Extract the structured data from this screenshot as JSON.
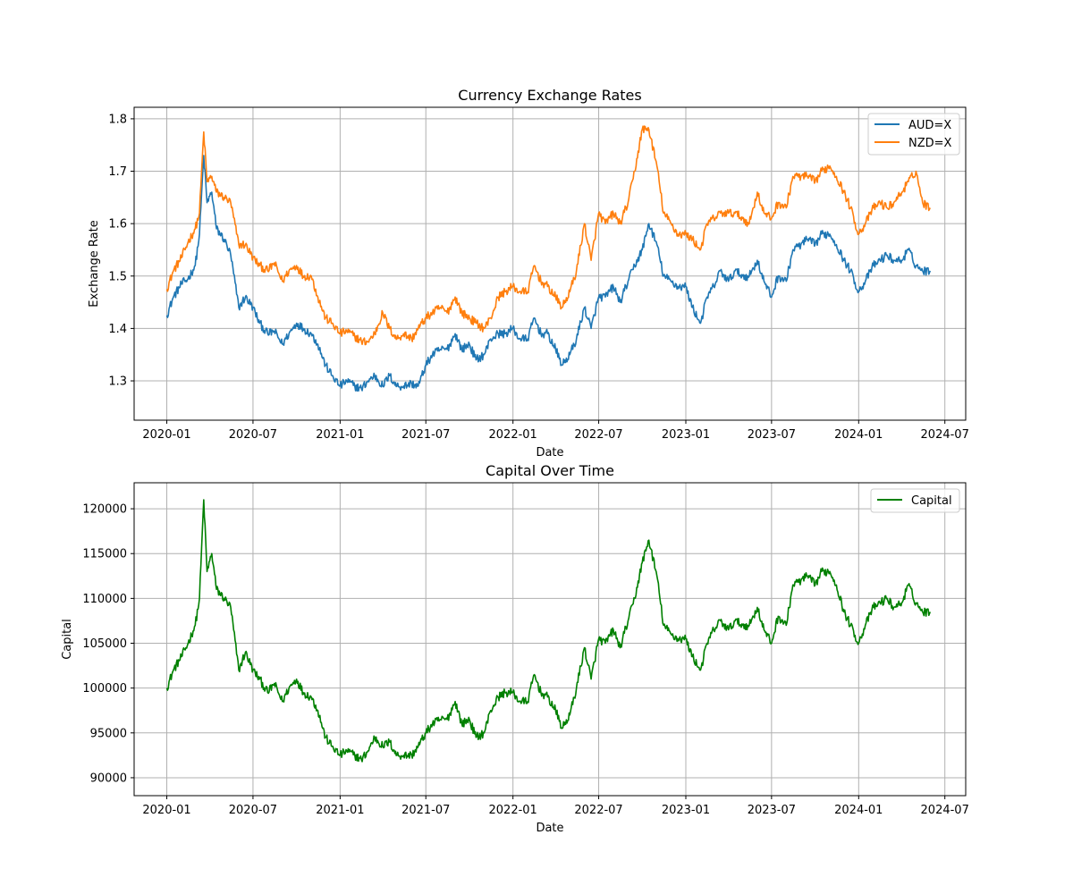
{
  "figure": {
    "background": "#ffffff",
    "grid_color": "#b0b0b0"
  },
  "chart_data": [
    {
      "type": "line",
      "title": "Currency Exchange Rates",
      "xlabel": "Date",
      "ylabel": "Exchange Rate",
      "xlim": [
        "2019-10-24",
        "2024-08-14"
      ],
      "ylim": [
        1.225,
        1.822
      ],
      "x_ticks": [
        "2020-01",
        "2020-07",
        "2021-01",
        "2021-07",
        "2022-01",
        "2022-07",
        "2023-01",
        "2023-07",
        "2024-01",
        "2024-07"
      ],
      "y_ticks": [
        1.3,
        1.4,
        1.5,
        1.6,
        1.7,
        1.8
      ],
      "y_tick_labels": [
        "1.3",
        "1.4",
        "1.5",
        "1.6",
        "1.7",
        "1.8"
      ],
      "grid": true,
      "legend": "top-right",
      "series": [
        {
          "name": "AUD=X",
          "color": "#1f77b4",
          "x": [
            "2020-01-01",
            "2020-01-15",
            "2020-02-01",
            "2020-02-15",
            "2020-03-01",
            "2020-03-10",
            "2020-03-19",
            "2020-03-26",
            "2020-04-05",
            "2020-04-15",
            "2020-05-01",
            "2020-05-15",
            "2020-06-01",
            "2020-06-15",
            "2020-07-01",
            "2020-07-15",
            "2020-08-01",
            "2020-08-15",
            "2020-09-01",
            "2020-09-15",
            "2020-10-01",
            "2020-10-15",
            "2020-11-01",
            "2020-11-15",
            "2020-12-01",
            "2020-12-15",
            "2021-01-01",
            "2021-01-15",
            "2021-02-01",
            "2021-02-15",
            "2021-03-01",
            "2021-03-15",
            "2021-04-01",
            "2021-04-15",
            "2021-05-01",
            "2021-05-15",
            "2021-06-01",
            "2021-06-15",
            "2021-07-01",
            "2021-07-15",
            "2021-08-01",
            "2021-08-15",
            "2021-09-01",
            "2021-09-15",
            "2021-10-01",
            "2021-10-15",
            "2021-11-01",
            "2021-11-15",
            "2021-12-01",
            "2021-12-15",
            "2022-01-01",
            "2022-01-15",
            "2022-02-01",
            "2022-02-15",
            "2022-03-01",
            "2022-03-15",
            "2022-04-01",
            "2022-04-15",
            "2022-05-01",
            "2022-05-15",
            "2022-06-01",
            "2022-06-15",
            "2022-07-01",
            "2022-07-15",
            "2022-08-01",
            "2022-08-15",
            "2022-09-01",
            "2022-09-15",
            "2022-10-01",
            "2022-10-15",
            "2022-11-01",
            "2022-11-15",
            "2022-12-01",
            "2022-12-15",
            "2023-01-01",
            "2023-01-15",
            "2023-02-01",
            "2023-02-15",
            "2023-03-01",
            "2023-03-15",
            "2023-04-01",
            "2023-04-15",
            "2023-05-01",
            "2023-05-15",
            "2023-06-01",
            "2023-06-15",
            "2023-07-01",
            "2023-07-15",
            "2023-08-01",
            "2023-08-15",
            "2023-09-01",
            "2023-09-15",
            "2023-10-01",
            "2023-10-15",
            "2023-11-01",
            "2023-11-15",
            "2023-12-01",
            "2023-12-15",
            "2024-01-01",
            "2024-01-15",
            "2024-02-01",
            "2024-02-15",
            "2024-03-01",
            "2024-03-15",
            "2024-04-01",
            "2024-04-15",
            "2024-05-01",
            "2024-05-15",
            "2024-05-31"
          ],
          "values": [
            1.425,
            1.46,
            1.485,
            1.495,
            1.52,
            1.58,
            1.73,
            1.64,
            1.66,
            1.59,
            1.57,
            1.54,
            1.44,
            1.46,
            1.44,
            1.41,
            1.39,
            1.395,
            1.37,
            1.39,
            1.41,
            1.4,
            1.39,
            1.37,
            1.33,
            1.31,
            1.29,
            1.3,
            1.29,
            1.285,
            1.3,
            1.31,
            1.29,
            1.31,
            1.29,
            1.29,
            1.295,
            1.29,
            1.33,
            1.35,
            1.36,
            1.36,
            1.39,
            1.36,
            1.37,
            1.34,
            1.35,
            1.38,
            1.39,
            1.39,
            1.4,
            1.38,
            1.38,
            1.42,
            1.39,
            1.39,
            1.36,
            1.33,
            1.35,
            1.38,
            1.44,
            1.4,
            1.46,
            1.46,
            1.48,
            1.45,
            1.49,
            1.52,
            1.55,
            1.6,
            1.56,
            1.5,
            1.49,
            1.48,
            1.48,
            1.44,
            1.41,
            1.46,
            1.48,
            1.51,
            1.49,
            1.51,
            1.5,
            1.5,
            1.53,
            1.49,
            1.46,
            1.5,
            1.49,
            1.55,
            1.56,
            1.57,
            1.56,
            1.58,
            1.58,
            1.56,
            1.53,
            1.51,
            1.47,
            1.49,
            1.52,
            1.53,
            1.54,
            1.53,
            1.53,
            1.55,
            1.52,
            1.51,
            1.51
          ]
        },
        {
          "name": "NZD=X",
          "color": "#ff7f0e",
          "x": [
            "2020-01-01",
            "2020-01-15",
            "2020-02-01",
            "2020-02-15",
            "2020-03-01",
            "2020-03-10",
            "2020-03-19",
            "2020-03-26",
            "2020-04-05",
            "2020-04-15",
            "2020-05-01",
            "2020-05-15",
            "2020-06-01",
            "2020-06-15",
            "2020-07-01",
            "2020-07-15",
            "2020-08-01",
            "2020-08-15",
            "2020-09-01",
            "2020-09-15",
            "2020-10-01",
            "2020-10-15",
            "2020-11-01",
            "2020-11-15",
            "2020-12-01",
            "2020-12-15",
            "2021-01-01",
            "2021-01-15",
            "2021-02-01",
            "2021-02-15",
            "2021-03-01",
            "2021-03-15",
            "2021-04-01",
            "2021-04-15",
            "2021-05-01",
            "2021-05-15",
            "2021-06-01",
            "2021-06-15",
            "2021-07-01",
            "2021-07-15",
            "2021-08-01",
            "2021-08-15",
            "2021-09-01",
            "2021-09-15",
            "2021-10-01",
            "2021-10-15",
            "2021-11-01",
            "2021-11-15",
            "2021-12-01",
            "2021-12-15",
            "2022-01-01",
            "2022-01-15",
            "2022-02-01",
            "2022-02-15",
            "2022-03-01",
            "2022-03-15",
            "2022-04-01",
            "2022-04-15",
            "2022-05-01",
            "2022-05-15",
            "2022-06-01",
            "2022-06-15",
            "2022-07-01",
            "2022-07-15",
            "2022-08-01",
            "2022-08-15",
            "2022-09-01",
            "2022-09-15",
            "2022-10-01",
            "2022-10-15",
            "2022-11-01",
            "2022-11-15",
            "2022-12-01",
            "2022-12-15",
            "2023-01-01",
            "2023-01-15",
            "2023-02-01",
            "2023-02-15",
            "2023-03-01",
            "2023-03-15",
            "2023-04-01",
            "2023-04-15",
            "2023-05-01",
            "2023-05-15",
            "2023-06-01",
            "2023-06-15",
            "2023-07-01",
            "2023-07-15",
            "2023-08-01",
            "2023-08-15",
            "2023-09-01",
            "2023-09-15",
            "2023-10-01",
            "2023-10-15",
            "2023-11-01",
            "2023-11-15",
            "2023-12-01",
            "2023-12-15",
            "2024-01-01",
            "2024-01-15",
            "2024-02-01",
            "2024-02-15",
            "2024-03-01",
            "2024-03-15",
            "2024-04-01",
            "2024-04-15",
            "2024-05-01",
            "2024-05-15",
            "2024-05-31"
          ],
          "values": [
            1.475,
            1.51,
            1.535,
            1.565,
            1.59,
            1.62,
            1.775,
            1.68,
            1.69,
            1.66,
            1.65,
            1.64,
            1.56,
            1.56,
            1.535,
            1.52,
            1.51,
            1.525,
            1.49,
            1.51,
            1.52,
            1.5,
            1.5,
            1.46,
            1.42,
            1.41,
            1.39,
            1.395,
            1.385,
            1.375,
            1.375,
            1.39,
            1.43,
            1.4,
            1.38,
            1.39,
            1.38,
            1.4,
            1.42,
            1.43,
            1.44,
            1.43,
            1.46,
            1.43,
            1.42,
            1.41,
            1.4,
            1.42,
            1.46,
            1.47,
            1.48,
            1.47,
            1.47,
            1.52,
            1.49,
            1.48,
            1.46,
            1.44,
            1.47,
            1.51,
            1.6,
            1.53,
            1.62,
            1.6,
            1.62,
            1.6,
            1.64,
            1.7,
            1.78,
            1.78,
            1.71,
            1.62,
            1.6,
            1.58,
            1.58,
            1.57,
            1.55,
            1.6,
            1.61,
            1.62,
            1.62,
            1.62,
            1.61,
            1.6,
            1.66,
            1.62,
            1.61,
            1.64,
            1.63,
            1.69,
            1.69,
            1.69,
            1.68,
            1.7,
            1.71,
            1.69,
            1.66,
            1.63,
            1.58,
            1.6,
            1.63,
            1.64,
            1.63,
            1.64,
            1.66,
            1.68,
            1.7,
            1.64,
            1.63
          ]
        }
      ]
    },
    {
      "type": "line",
      "title": "Capital Over Time",
      "xlabel": "Date",
      "ylabel": "Capital",
      "xlim": [
        "2019-10-24",
        "2024-08-14"
      ],
      "ylim": [
        88000,
        122900
      ],
      "x_ticks": [
        "2020-01",
        "2020-07",
        "2021-01",
        "2021-07",
        "2022-01",
        "2022-07",
        "2023-01",
        "2023-07",
        "2024-01",
        "2024-07"
      ],
      "y_ticks": [
        90000,
        95000,
        100000,
        105000,
        110000,
        115000,
        120000
      ],
      "y_tick_labels": [
        "90000",
        "95000",
        "100000",
        "105000",
        "110000",
        "115000",
        "120000"
      ],
      "grid": true,
      "legend": "top-right",
      "series": [
        {
          "name": "Capital",
          "color": "#008000",
          "x": [
            "2020-01-01",
            "2020-01-15",
            "2020-02-01",
            "2020-02-15",
            "2020-03-01",
            "2020-03-10",
            "2020-03-19",
            "2020-03-26",
            "2020-04-05",
            "2020-04-15",
            "2020-05-01",
            "2020-05-15",
            "2020-06-01",
            "2020-06-15",
            "2020-07-01",
            "2020-07-15",
            "2020-08-01",
            "2020-08-15",
            "2020-09-01",
            "2020-09-15",
            "2020-10-01",
            "2020-10-15",
            "2020-11-01",
            "2020-11-15",
            "2020-12-01",
            "2020-12-15",
            "2021-01-01",
            "2021-01-15",
            "2021-02-01",
            "2021-02-15",
            "2021-03-01",
            "2021-03-15",
            "2021-04-01",
            "2021-04-15",
            "2021-05-01",
            "2021-05-15",
            "2021-06-01",
            "2021-06-15",
            "2021-07-01",
            "2021-07-15",
            "2021-08-01",
            "2021-08-15",
            "2021-09-01",
            "2021-09-15",
            "2021-10-01",
            "2021-10-15",
            "2021-11-01",
            "2021-11-15",
            "2021-12-01",
            "2021-12-15",
            "2022-01-01",
            "2022-01-15",
            "2022-02-01",
            "2022-02-15",
            "2022-03-01",
            "2022-03-15",
            "2022-04-01",
            "2022-04-15",
            "2022-05-01",
            "2022-05-15",
            "2022-06-01",
            "2022-06-15",
            "2022-07-01",
            "2022-07-15",
            "2022-08-01",
            "2022-08-15",
            "2022-09-01",
            "2022-09-15",
            "2022-10-01",
            "2022-10-15",
            "2022-11-01",
            "2022-11-15",
            "2022-12-01",
            "2022-12-15",
            "2023-01-01",
            "2023-01-15",
            "2023-02-01",
            "2023-02-15",
            "2023-03-01",
            "2023-03-15",
            "2023-04-01",
            "2023-04-15",
            "2023-05-01",
            "2023-05-15",
            "2023-06-01",
            "2023-06-15",
            "2023-07-01",
            "2023-07-15",
            "2023-08-01",
            "2023-08-15",
            "2023-09-01",
            "2023-09-15",
            "2023-10-01",
            "2023-10-15",
            "2023-11-01",
            "2023-11-15",
            "2023-12-01",
            "2023-12-15",
            "2024-01-01",
            "2024-01-15",
            "2024-02-01",
            "2024-02-15",
            "2024-03-01",
            "2024-03-15",
            "2024-04-01",
            "2024-04-15",
            "2024-05-01",
            "2024-05-15",
            "2024-05-31"
          ],
          "values": [
            100000,
            102000,
            103500,
            105000,
            107000,
            110000,
            121000,
            113000,
            115000,
            111000,
            110000,
            109000,
            102000,
            104000,
            102000,
            101000,
            99500,
            100500,
            98500,
            100000,
            101000,
            99500,
            99000,
            97500,
            94500,
            93500,
            92500,
            93000,
            92500,
            92000,
            93000,
            94500,
            93500,
            94000,
            92500,
            92500,
            92500,
            93500,
            95000,
            96000,
            96500,
            96500,
            98500,
            96000,
            96500,
            94500,
            95000,
            97500,
            99000,
            99500,
            99500,
            98500,
            98500,
            101500,
            99500,
            99000,
            97500,
            95500,
            97000,
            100000,
            104500,
            101000,
            105500,
            105000,
            106500,
            104500,
            107500,
            110000,
            114000,
            116500,
            112500,
            107000,
            106000,
            105500,
            105500,
            103500,
            102000,
            105000,
            106500,
            107500,
            106500,
            107500,
            107000,
            107000,
            109000,
            106500,
            105000,
            108000,
            107000,
            111500,
            112000,
            112500,
            111500,
            113000,
            113000,
            111500,
            108500,
            107000,
            105000,
            107000,
            109000,
            109500,
            110000,
            109000,
            109500,
            111500,
            109500,
            108500,
            108500
          ]
        }
      ]
    }
  ]
}
